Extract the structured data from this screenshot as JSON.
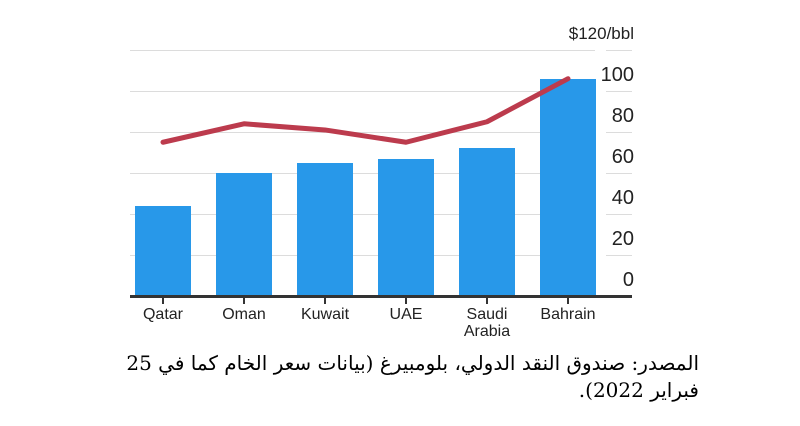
{
  "figure": {
    "background": "#ffffff"
  },
  "chart_data": {
    "type": "bar",
    "title": "",
    "categories": [
      "Qatar",
      "Oman",
      "Kuwait",
      "UAE",
      "Saudi Arabia",
      "Bahrain"
    ],
    "series": [
      {
        "name": "breakeven-oil-price-bars",
        "type": "bar",
        "color": "#2898e9",
        "values": [
          44,
          60,
          65,
          67,
          72,
          106
        ]
      },
      {
        "name": "oil-price-overlay-line",
        "type": "line",
        "color": "#bc3b4d",
        "values": [
          75,
          84,
          81,
          75,
          85,
          106
        ]
      }
    ],
    "y_axis": {
      "side": "right",
      "unit_label": "$120/bbl",
      "unit_label_value": 120,
      "ticks": [
        0,
        20,
        40,
        60,
        80,
        100
      ],
      "ylim": [
        0,
        120
      ]
    },
    "x_axis": {
      "tick_marks": true
    },
    "grid": true,
    "legend": "none"
  },
  "caption": {
    "line1": "المصدر: صندوق النقد الدولي، بلومبيرغ (بيانات سعر الخام كما في 25",
    "line2": "فبراير 2022)."
  },
  "colors": {
    "bar_blue": "#2898e9",
    "line_red": "#bc3b4d",
    "gridline": "#dcdcdc",
    "axis": "#333333",
    "label_text": "#222222",
    "caption_text": "#111111"
  }
}
